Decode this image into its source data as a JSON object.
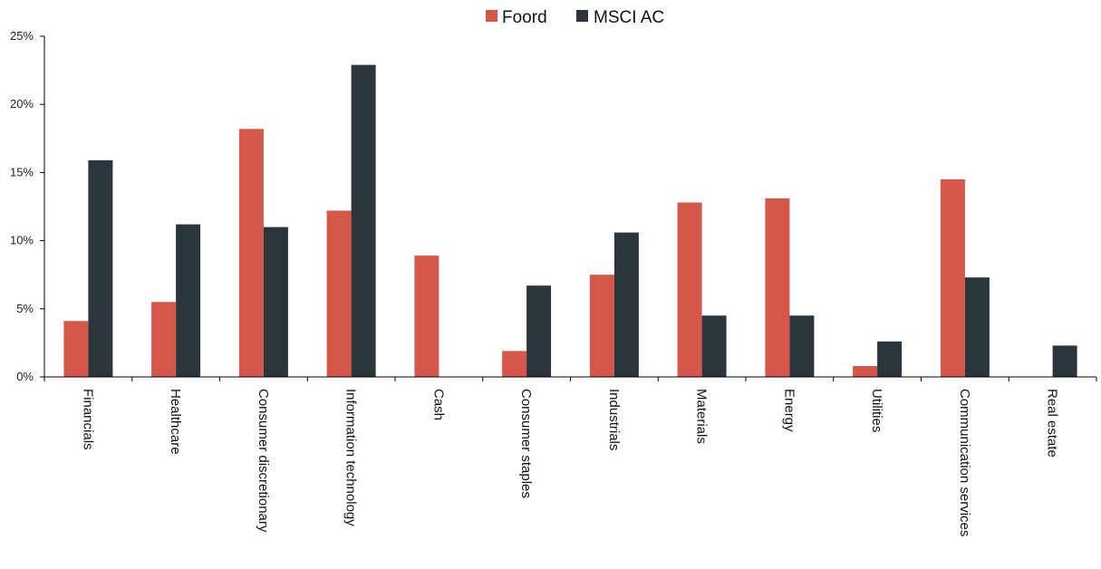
{
  "chart_data": {
    "type": "bar",
    "categories": [
      "Financials",
      "Healthcare",
      "Consumer discretionary",
      "Information technology",
      "Cash",
      "Consumer staples",
      "Industrials",
      "Materials",
      "Energy",
      "Utilities",
      "Communication services",
      "Real estate"
    ],
    "series": [
      {
        "name": "Foord",
        "color": "#d4574a",
        "values": [
          4.1,
          5.5,
          18.2,
          12.2,
          8.9,
          1.9,
          7.5,
          12.8,
          13.1,
          0.8,
          14.5,
          0
        ]
      },
      {
        "name": "MSCI AC",
        "color": "#2b353c",
        "values": [
          15.9,
          11.2,
          11.0,
          22.9,
          0,
          6.7,
          10.6,
          4.5,
          4.5,
          2.6,
          7.3,
          2.3
        ]
      }
    ],
    "yticks": [
      "0%",
      "5%",
      "10%",
      "15%",
      "20%",
      "25%"
    ],
    "ylim": [
      0,
      25
    ],
    "grid": false,
    "legend_position": "top-center"
  }
}
